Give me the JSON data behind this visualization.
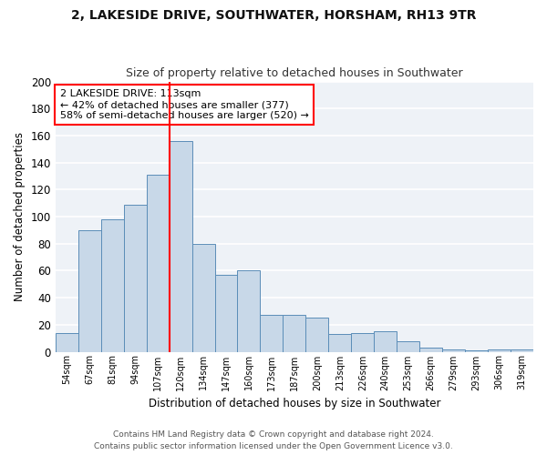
{
  "title_line1": "2, LAKESIDE DRIVE, SOUTHWATER, HORSHAM, RH13 9TR",
  "title_line2": "Size of property relative to detached houses in Southwater",
  "xlabel": "Distribution of detached houses by size in Southwater",
  "ylabel": "Number of detached properties",
  "bar_labels": [
    "54sqm",
    "67sqm",
    "81sqm",
    "94sqm",
    "107sqm",
    "120sqm",
    "134sqm",
    "147sqm",
    "160sqm",
    "173sqm",
    "187sqm",
    "200sqm",
    "213sqm",
    "226sqm",
    "240sqm",
    "253sqm",
    "266sqm",
    "279sqm",
    "293sqm",
    "306sqm",
    "319sqm"
  ],
  "bar_heights": [
    14,
    90,
    98,
    109,
    131,
    156,
    80,
    57,
    60,
    27,
    27,
    25,
    13,
    14,
    15,
    8,
    3,
    2,
    1,
    2,
    2
  ],
  "bar_color": "#c8d8e8",
  "bar_edge_color": "#5b8db8",
  "vline_color": "red",
  "vline_x_index": 4.5,
  "annotation_text": "2 LAKESIDE DRIVE: 113sqm\n← 42% of detached houses are smaller (377)\n58% of semi-detached houses are larger (520) →",
  "annotation_box_color": "white",
  "annotation_box_edge_color": "red",
  "ylim": [
    0,
    200
  ],
  "yticks": [
    0,
    20,
    40,
    60,
    80,
    100,
    120,
    140,
    160,
    180,
    200
  ],
  "background_color": "#eef2f7",
  "grid_color": "white",
  "footer_text": "Contains HM Land Registry data © Crown copyright and database right 2024.\nContains public sector information licensed under the Open Government Licence v3.0."
}
